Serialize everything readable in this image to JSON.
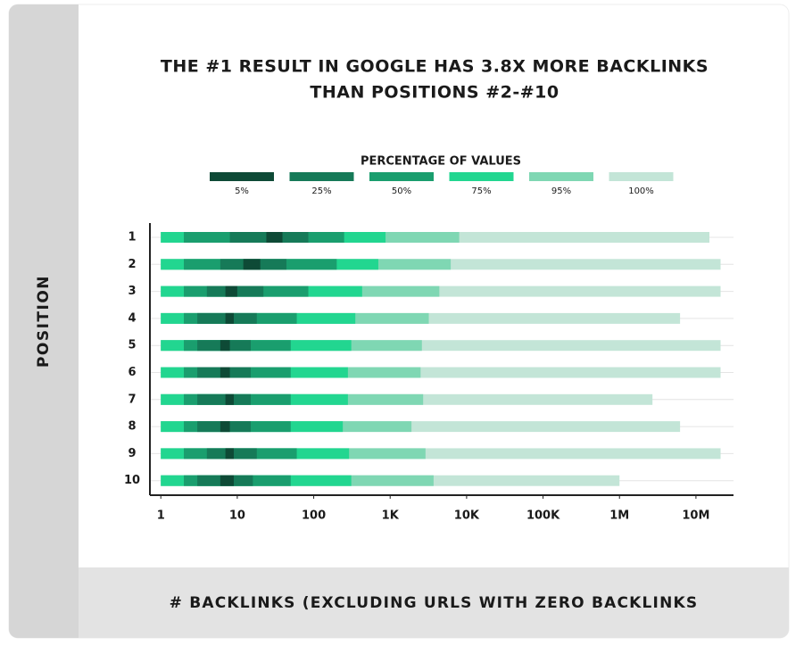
{
  "chart_data": {
    "type": "range-bar",
    "orientation": "horizontal",
    "title": [
      "THE #1 RESULT IN GOOGLE HAS 3.8X MORE BACKLINKS",
      "THAN POSITIONS #2-#10"
    ],
    "legend_title": "PERCENTAGE OF VALUES",
    "y_label": "POSITION",
    "x_label": "# BACKLINKS (EXCLUDING URLS WITH ZERO BACKLINKS",
    "categories": [
      "1",
      "2",
      "3",
      "4",
      "5",
      "6",
      "7",
      "8",
      "9",
      "10"
    ],
    "log_x": true,
    "grid": true,
    "xlim": [
      0.72,
      31000000
    ],
    "xticks": [
      1,
      10,
      100,
      {
        "value": 1000,
        "label": "1K"
      },
      {
        "value": 10000,
        "label": "10K"
      },
      {
        "value": 100000,
        "label": "100K"
      },
      {
        "value": 1000000,
        "label": "1M"
      },
      {
        "value": 10000000,
        "label": "10M"
      }
    ],
    "series": [
      {
        "name": "5%",
        "color": "#0e4a36",
        "values": [
          [
            24,
            39
          ],
          [
            12,
            20
          ],
          [
            7,
            10
          ],
          [
            7,
            9
          ],
          [
            6,
            8
          ],
          [
            6,
            8
          ],
          [
            7,
            9
          ],
          [
            6,
            8
          ],
          [
            7,
            9
          ],
          [
            6,
            9
          ]
        ]
      },
      {
        "name": "25%",
        "color": "#167a58",
        "values": [
          [
            8,
            85
          ],
          [
            6,
            44
          ],
          [
            4,
            22
          ],
          [
            3,
            18
          ],
          [
            3,
            15
          ],
          [
            3,
            15
          ],
          [
            3,
            15
          ],
          [
            3,
            15
          ],
          [
            4,
            18
          ],
          [
            3,
            16
          ]
        ]
      },
      {
        "name": "50%",
        "color": "#1a9e6e",
        "values": [
          [
            2,
            250
          ],
          [
            2,
            200
          ],
          [
            2,
            85
          ],
          [
            2,
            60
          ],
          [
            2,
            50
          ],
          [
            2,
            50
          ],
          [
            2,
            50
          ],
          [
            2,
            50
          ],
          [
            2,
            60
          ],
          [
            2,
            50
          ]
        ]
      },
      {
        "name": "75%",
        "color": "#22d690",
        "values": [
          [
            1,
            870
          ],
          [
            1,
            700
          ],
          [
            1,
            430
          ],
          [
            1,
            350
          ],
          [
            1,
            310
          ],
          [
            1,
            280
          ],
          [
            1,
            280
          ],
          [
            1,
            240
          ],
          [
            1,
            290
          ],
          [
            1,
            310
          ]
        ]
      },
      {
        "name": "95%",
        "color": "#7fd7b3",
        "values": [
          [
            1,
            8000
          ],
          [
            1,
            6200
          ],
          [
            1,
            4400
          ],
          [
            1,
            3200
          ],
          [
            1,
            2600
          ],
          [
            1,
            2500
          ],
          [
            1,
            2700
          ],
          [
            1,
            1900
          ],
          [
            1,
            2900
          ],
          [
            1,
            3700
          ]
        ]
      },
      {
        "name": "100%",
        "color": "#c3e5d7",
        "values": [
          [
            1,
            15000000
          ],
          [
            1,
            21000000
          ],
          [
            1,
            21000000
          ],
          [
            1,
            6200000
          ],
          [
            1,
            21000000
          ],
          [
            1,
            21000000
          ],
          [
            1,
            2700000
          ],
          [
            1,
            6200000
          ],
          [
            1,
            21000000
          ],
          [
            1,
            1000000
          ]
        ]
      }
    ]
  }
}
